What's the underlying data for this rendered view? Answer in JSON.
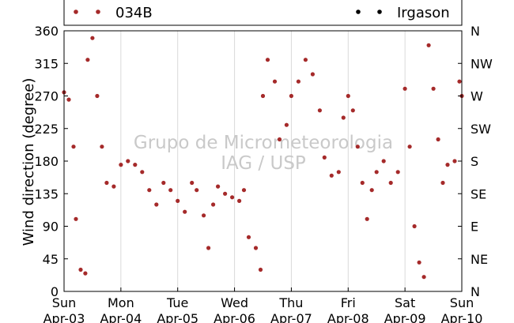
{
  "chart_data": {
    "type": "scatter",
    "title": "",
    "xlabel": "",
    "ylabel": "Wind direction (degree)",
    "ylim": [
      0,
      360
    ],
    "yticks": [
      0,
      45,
      90,
      135,
      180,
      225,
      270,
      315,
      360
    ],
    "yticks_right": [
      "N",
      "NE",
      "E",
      "SE",
      "S",
      "SW",
      "W",
      "NW",
      "N"
    ],
    "xticks": [
      {
        "day": "Sun",
        "date": "Apr-03"
      },
      {
        "day": "Mon",
        "date": "Apr-04"
      },
      {
        "day": "Tue",
        "date": "Apr-05"
      },
      {
        "day": "Wed",
        "date": "Apr-06"
      },
      {
        "day": "Thu",
        "date": "Apr-07"
      },
      {
        "day": "Fri",
        "date": "Apr-08"
      },
      {
        "day": "Sat",
        "date": "Apr-09"
      },
      {
        "day": "Sun",
        "date": "Apr-10"
      }
    ],
    "grid": "vertical",
    "legend": "top",
    "watermark": [
      "Grupo de Micrometeorologia",
      "IAG / USP"
    ],
    "series": [
      {
        "name": "034B",
        "color": "#a52a2a",
        "points": [
          [
            "Apr-03 00:00",
            275
          ],
          [
            "Apr-03 02:00",
            265
          ],
          [
            "Apr-03 04:00",
            200
          ],
          [
            "Apr-03 05:00",
            100
          ],
          [
            "Apr-03 07:00",
            30
          ],
          [
            "Apr-03 09:00",
            25
          ],
          [
            "Apr-03 10:00",
            320
          ],
          [
            "Apr-03 12:00",
            350
          ],
          [
            "Apr-03 14:00",
            270
          ],
          [
            "Apr-03 16:00",
            200
          ],
          [
            "Apr-03 18:00",
            150
          ],
          [
            "Apr-03 21:00",
            145
          ],
          [
            "Apr-04 00:00",
            175
          ],
          [
            "Apr-04 03:00",
            180
          ],
          [
            "Apr-04 06:00",
            175
          ],
          [
            "Apr-04 09:00",
            165
          ],
          [
            "Apr-04 12:00",
            140
          ],
          [
            "Apr-04 15:00",
            120
          ],
          [
            "Apr-04 18:00",
            150
          ],
          [
            "Apr-04 21:00",
            140
          ],
          [
            "Apr-05 00:00",
            125
          ],
          [
            "Apr-05 03:00",
            110
          ],
          [
            "Apr-05 06:00",
            150
          ],
          [
            "Apr-05 08:00",
            140
          ],
          [
            "Apr-05 11:00",
            105
          ],
          [
            "Apr-05 13:00",
            60
          ],
          [
            "Apr-05 15:00",
            120
          ],
          [
            "Apr-05 17:00",
            145
          ],
          [
            "Apr-05 20:00",
            135
          ],
          [
            "Apr-05 23:00",
            130
          ],
          [
            "Apr-06 02:00",
            125
          ],
          [
            "Apr-06 04:00",
            140
          ],
          [
            "Apr-06 06:00",
            75
          ],
          [
            "Apr-06 09:00",
            60
          ],
          [
            "Apr-06 11:00",
            30
          ],
          [
            "Apr-06 12:00",
            270
          ],
          [
            "Apr-06 14:00",
            320
          ],
          [
            "Apr-06 17:00",
            290
          ],
          [
            "Apr-06 19:00",
            210
          ],
          [
            "Apr-06 22:00",
            230
          ],
          [
            "Apr-07 00:00",
            270
          ],
          [
            "Apr-07 03:00",
            290
          ],
          [
            "Apr-07 06:00",
            320
          ],
          [
            "Apr-07 09:00",
            300
          ],
          [
            "Apr-07 12:00",
            250
          ],
          [
            "Apr-07 14:00",
            185
          ],
          [
            "Apr-07 17:00",
            160
          ],
          [
            "Apr-07 20:00",
            165
          ],
          [
            "Apr-07 22:00",
            240
          ],
          [
            "Apr-08 00:00",
            270
          ],
          [
            "Apr-08 02:00",
            250
          ],
          [
            "Apr-08 04:00",
            200
          ],
          [
            "Apr-08 06:00",
            150
          ],
          [
            "Apr-08 08:00",
            100
          ],
          [
            "Apr-08 10:00",
            140
          ],
          [
            "Apr-08 12:00",
            165
          ],
          [
            "Apr-08 15:00",
            180
          ],
          [
            "Apr-08 18:00",
            150
          ],
          [
            "Apr-08 21:00",
            165
          ],
          [
            "Apr-09 00:00",
            280
          ],
          [
            "Apr-09 02:00",
            200
          ],
          [
            "Apr-09 04:00",
            90
          ],
          [
            "Apr-09 06:00",
            40
          ],
          [
            "Apr-09 08:00",
            20
          ],
          [
            "Apr-09 10:00",
            340
          ],
          [
            "Apr-09 12:00",
            280
          ],
          [
            "Apr-09 14:00",
            210
          ],
          [
            "Apr-09 16:00",
            150
          ],
          [
            "Apr-09 18:00",
            175
          ],
          [
            "Apr-09 21:00",
            180
          ],
          [
            "Apr-09 23:00",
            290
          ],
          [
            "Apr-10 00:00",
            270
          ]
        ]
      },
      {
        "name": "Irgason",
        "color": "#000000",
        "points": []
      }
    ]
  }
}
